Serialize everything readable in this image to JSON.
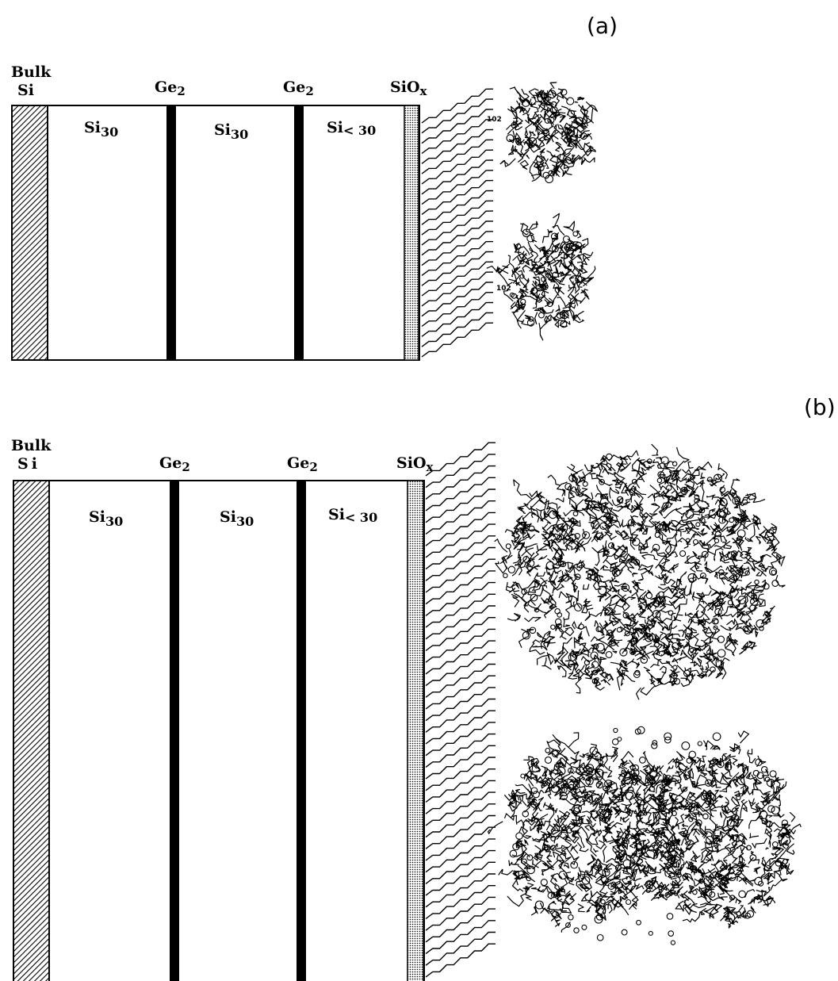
{
  "panel_a": {
    "label": "(a)",
    "bulk_label_line1": "Bulk",
    "bulk_label_line2": "Si",
    "layers": [
      {
        "top_label": "Ge",
        "top_sub": "2"
      },
      {
        "top_label": "Ge",
        "top_sub": "2"
      },
      {
        "top_label": "SiO",
        "top_sub": "x"
      }
    ],
    "regions": [
      {
        "label": "Si",
        "sub": "30"
      },
      {
        "label": "Si",
        "sub": "30"
      },
      {
        "label": "Si",
        "sub": "< 30"
      }
    ],
    "protein_labels": [
      "102",
      "102"
    ]
  },
  "panel_b": {
    "label": "(b)",
    "bulk_label_line1": "Bulk",
    "bulk_label_line2": "Si",
    "layers": [
      {
        "top_label": "Ge",
        "top_sub": "2"
      },
      {
        "top_label": "Ge",
        "top_sub": "2"
      },
      {
        "top_label": "SiO",
        "top_sub": "x"
      }
    ],
    "regions": [
      {
        "label": "Si",
        "sub": "30"
      },
      {
        "label": "Si",
        "sub": "30"
      },
      {
        "label": "Si",
        "sub": "< 30"
      }
    ]
  },
  "colors": {
    "ink": "#000000",
    "paper": "#ffffff"
  }
}
